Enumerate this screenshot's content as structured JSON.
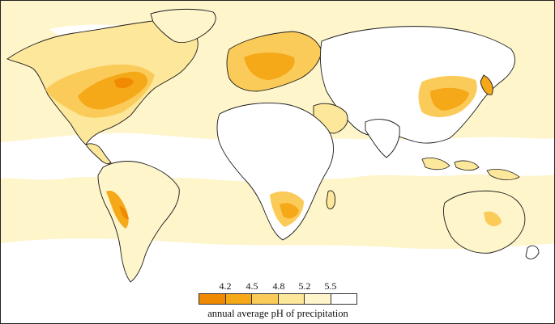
{
  "map": {
    "legend": {
      "title": "annual average pH of precipitation",
      "ticks": [
        "4.2",
        "4.5",
        "4.8",
        "5.2",
        "5.5"
      ],
      "bins": [
        {
          "range": "< 4.2",
          "color": "#f08a00"
        },
        {
          "range": "4.2 – 4.5",
          "color": "#f5a818"
        },
        {
          "range": "4.5 – 4.8",
          "color": "#fbcb5a"
        },
        {
          "range": "4.8 – 5.2",
          "color": "#fde79a"
        },
        {
          "range": "5.2 – 5.5",
          "color": "#fef5cb"
        },
        {
          "range": "> 5.5",
          "color": "#ffffff"
        }
      ]
    },
    "colors": {
      "background_ocean": "#fef5cb",
      "coastline": "#1a1a1a"
    }
  }
}
